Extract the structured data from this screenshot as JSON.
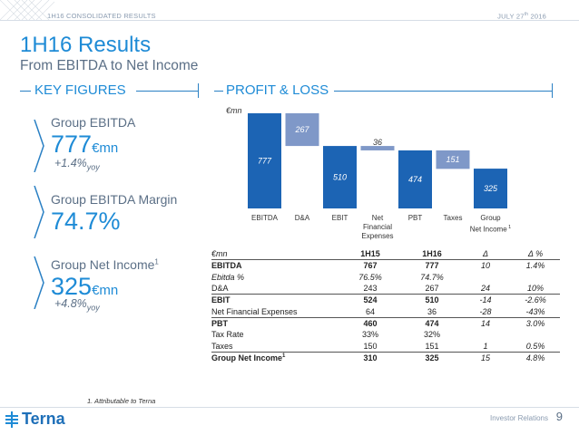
{
  "header": {
    "section": "1H16 CONSOLIDATED RESULTS",
    "date_main": "JULY 27",
    "date_sup": "th",
    "date_year": " 2016"
  },
  "title": "1H16 Results",
  "subtitle": "From EBITDA to Net Income",
  "key_figures": {
    "heading": "KEY FIGURES",
    "items": [
      {
        "label": "Group EBITDA",
        "value": "777",
        "unit": "€mn",
        "growth": "+1.4%",
        "growth_sub": "yoy"
      },
      {
        "label": "Group EBITDA Margin",
        "value": "74.7%",
        "unit": "",
        "growth": "",
        "growth_sub": ""
      },
      {
        "label": "Group Net Income",
        "label_sup": "1",
        "value": "325",
        "unit": "€mn",
        "growth": "+4.8%",
        "growth_sub": "yoy"
      }
    ]
  },
  "profit_loss": {
    "heading": "PROFIT & LOSS",
    "unit": "€mn"
  },
  "chart_data": {
    "type": "waterfall",
    "unit": "€mn",
    "categories": [
      "EBITDA",
      "D&A",
      "EBIT",
      "Net Financial Expenses",
      "PBT",
      "Taxes",
      "Group Net Income"
    ],
    "category_lines": [
      [
        "EBITDA"
      ],
      [
        "D&A"
      ],
      [
        "EBIT"
      ],
      [
        "Net",
        "Financial",
        "Expenses"
      ],
      [
        "PBT"
      ],
      [
        "Taxes"
      ],
      [
        "Group",
        "Net Income"
      ]
    ],
    "category_sup": [
      "",
      "",
      "",
      "",
      "",
      "",
      "1"
    ],
    "values": [
      777,
      267,
      510,
      36,
      474,
      151,
      325
    ],
    "kinds": [
      "total",
      "decrease",
      "total",
      "decrease",
      "total",
      "decrease",
      "total"
    ],
    "colors": {
      "total": "#1c64b4",
      "decrease": "#7f98c8"
    }
  },
  "table": {
    "headers": [
      "€mn",
      "1H15",
      "1H16",
      "Δ",
      "Δ %"
    ],
    "rows": [
      {
        "label": "EBITDA",
        "sup": "",
        "v1": "767",
        "v2": "777",
        "d": "10",
        "dp": "1.4%",
        "style": "bold"
      },
      {
        "label": "Ebitda %",
        "sup": "",
        "v1": "76.5%",
        "v2": "74.7%",
        "d": "",
        "dp": "",
        "style": "ital"
      },
      {
        "label": "D&A",
        "sup": "",
        "v1": "243",
        "v2": "267",
        "d": "24",
        "dp": "10%",
        "style": ""
      },
      {
        "label": "EBIT",
        "sup": "",
        "v1": "524",
        "v2": "510",
        "d": "-14",
        "dp": "-2.6%",
        "style": "bold line-top"
      },
      {
        "label": "Net Financial Expenses",
        "sup": "",
        "v1": "64",
        "v2": "36",
        "d": "-28",
        "dp": "-43%",
        "style": ""
      },
      {
        "label": "PBT",
        "sup": "",
        "v1": "460",
        "v2": "474",
        "d": "14",
        "dp": "3.0%",
        "style": "bold line-top"
      },
      {
        "label": "Tax Rate",
        "sup": "",
        "v1": "33%",
        "v2": "32%",
        "d": "",
        "dp": "",
        "style": ""
      },
      {
        "label": "Taxes",
        "sup": "",
        "v1": "150",
        "v2": "151",
        "d": "1",
        "dp": "0.5%",
        "style": ""
      },
      {
        "label": "Group Net Income",
        "sup": "1",
        "v1": "310",
        "v2": "325",
        "d": "15",
        "dp": "4.8%",
        "style": "bold line-top"
      }
    ]
  },
  "footnote": "1.    Attributable to Terna",
  "footer": {
    "logo_text": "Terna",
    "label": "Investor Relations",
    "page": "9"
  }
}
